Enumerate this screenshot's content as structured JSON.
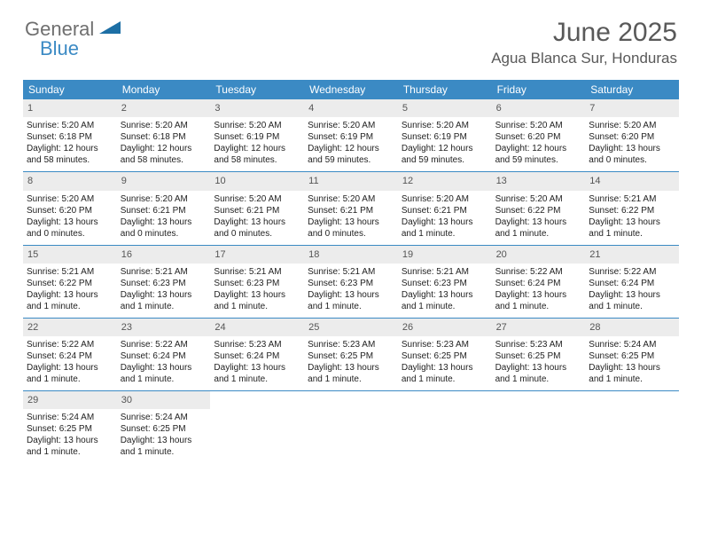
{
  "brand": {
    "part1": "General",
    "part2": "Blue"
  },
  "title": "June 2025",
  "location": "Agua Blanca Sur, Honduras",
  "colors": {
    "accent": "#3b8ac4",
    "header_text": "#595959",
    "daybar_bg": "#ececec",
    "body_text": "#222222",
    "background": "#ffffff"
  },
  "typography": {
    "title_fontsize": 30,
    "location_fontsize": 17,
    "dayheader_fontsize": 12,
    "cell_fontsize": 10
  },
  "calendar": {
    "columns": [
      "Sunday",
      "Monday",
      "Tuesday",
      "Wednesday",
      "Thursday",
      "Friday",
      "Saturday"
    ],
    "weeks": [
      [
        {
          "day": "1",
          "sunrise": "Sunrise: 5:20 AM",
          "sunset": "Sunset: 6:18 PM",
          "daylight": "Daylight: 12 hours and 58 minutes."
        },
        {
          "day": "2",
          "sunrise": "Sunrise: 5:20 AM",
          "sunset": "Sunset: 6:18 PM",
          "daylight": "Daylight: 12 hours and 58 minutes."
        },
        {
          "day": "3",
          "sunrise": "Sunrise: 5:20 AM",
          "sunset": "Sunset: 6:19 PM",
          "daylight": "Daylight: 12 hours and 58 minutes."
        },
        {
          "day": "4",
          "sunrise": "Sunrise: 5:20 AM",
          "sunset": "Sunset: 6:19 PM",
          "daylight": "Daylight: 12 hours and 59 minutes."
        },
        {
          "day": "5",
          "sunrise": "Sunrise: 5:20 AM",
          "sunset": "Sunset: 6:19 PM",
          "daylight": "Daylight: 12 hours and 59 minutes."
        },
        {
          "day": "6",
          "sunrise": "Sunrise: 5:20 AM",
          "sunset": "Sunset: 6:20 PM",
          "daylight": "Daylight: 12 hours and 59 minutes."
        },
        {
          "day": "7",
          "sunrise": "Sunrise: 5:20 AM",
          "sunset": "Sunset: 6:20 PM",
          "daylight": "Daylight: 13 hours and 0 minutes."
        }
      ],
      [
        {
          "day": "8",
          "sunrise": "Sunrise: 5:20 AM",
          "sunset": "Sunset: 6:20 PM",
          "daylight": "Daylight: 13 hours and 0 minutes."
        },
        {
          "day": "9",
          "sunrise": "Sunrise: 5:20 AM",
          "sunset": "Sunset: 6:21 PM",
          "daylight": "Daylight: 13 hours and 0 minutes."
        },
        {
          "day": "10",
          "sunrise": "Sunrise: 5:20 AM",
          "sunset": "Sunset: 6:21 PM",
          "daylight": "Daylight: 13 hours and 0 minutes."
        },
        {
          "day": "11",
          "sunrise": "Sunrise: 5:20 AM",
          "sunset": "Sunset: 6:21 PM",
          "daylight": "Daylight: 13 hours and 0 minutes."
        },
        {
          "day": "12",
          "sunrise": "Sunrise: 5:20 AM",
          "sunset": "Sunset: 6:21 PM",
          "daylight": "Daylight: 13 hours and 1 minute."
        },
        {
          "day": "13",
          "sunrise": "Sunrise: 5:20 AM",
          "sunset": "Sunset: 6:22 PM",
          "daylight": "Daylight: 13 hours and 1 minute."
        },
        {
          "day": "14",
          "sunrise": "Sunrise: 5:21 AM",
          "sunset": "Sunset: 6:22 PM",
          "daylight": "Daylight: 13 hours and 1 minute."
        }
      ],
      [
        {
          "day": "15",
          "sunrise": "Sunrise: 5:21 AM",
          "sunset": "Sunset: 6:22 PM",
          "daylight": "Daylight: 13 hours and 1 minute."
        },
        {
          "day": "16",
          "sunrise": "Sunrise: 5:21 AM",
          "sunset": "Sunset: 6:23 PM",
          "daylight": "Daylight: 13 hours and 1 minute."
        },
        {
          "day": "17",
          "sunrise": "Sunrise: 5:21 AM",
          "sunset": "Sunset: 6:23 PM",
          "daylight": "Daylight: 13 hours and 1 minute."
        },
        {
          "day": "18",
          "sunrise": "Sunrise: 5:21 AM",
          "sunset": "Sunset: 6:23 PM",
          "daylight": "Daylight: 13 hours and 1 minute."
        },
        {
          "day": "19",
          "sunrise": "Sunrise: 5:21 AM",
          "sunset": "Sunset: 6:23 PM",
          "daylight": "Daylight: 13 hours and 1 minute."
        },
        {
          "day": "20",
          "sunrise": "Sunrise: 5:22 AM",
          "sunset": "Sunset: 6:24 PM",
          "daylight": "Daylight: 13 hours and 1 minute."
        },
        {
          "day": "21",
          "sunrise": "Sunrise: 5:22 AM",
          "sunset": "Sunset: 6:24 PM",
          "daylight": "Daylight: 13 hours and 1 minute."
        }
      ],
      [
        {
          "day": "22",
          "sunrise": "Sunrise: 5:22 AM",
          "sunset": "Sunset: 6:24 PM",
          "daylight": "Daylight: 13 hours and 1 minute."
        },
        {
          "day": "23",
          "sunrise": "Sunrise: 5:22 AM",
          "sunset": "Sunset: 6:24 PM",
          "daylight": "Daylight: 13 hours and 1 minute."
        },
        {
          "day": "24",
          "sunrise": "Sunrise: 5:23 AM",
          "sunset": "Sunset: 6:24 PM",
          "daylight": "Daylight: 13 hours and 1 minute."
        },
        {
          "day": "25",
          "sunrise": "Sunrise: 5:23 AM",
          "sunset": "Sunset: 6:25 PM",
          "daylight": "Daylight: 13 hours and 1 minute."
        },
        {
          "day": "26",
          "sunrise": "Sunrise: 5:23 AM",
          "sunset": "Sunset: 6:25 PM",
          "daylight": "Daylight: 13 hours and 1 minute."
        },
        {
          "day": "27",
          "sunrise": "Sunrise: 5:23 AM",
          "sunset": "Sunset: 6:25 PM",
          "daylight": "Daylight: 13 hours and 1 minute."
        },
        {
          "day": "28",
          "sunrise": "Sunrise: 5:24 AM",
          "sunset": "Sunset: 6:25 PM",
          "daylight": "Daylight: 13 hours and 1 minute."
        }
      ],
      [
        {
          "day": "29",
          "sunrise": "Sunrise: 5:24 AM",
          "sunset": "Sunset: 6:25 PM",
          "daylight": "Daylight: 13 hours and 1 minute."
        },
        {
          "day": "30",
          "sunrise": "Sunrise: 5:24 AM",
          "sunset": "Sunset: 6:25 PM",
          "daylight": "Daylight: 13 hours and 1 minute."
        },
        null,
        null,
        null,
        null,
        null
      ]
    ]
  }
}
